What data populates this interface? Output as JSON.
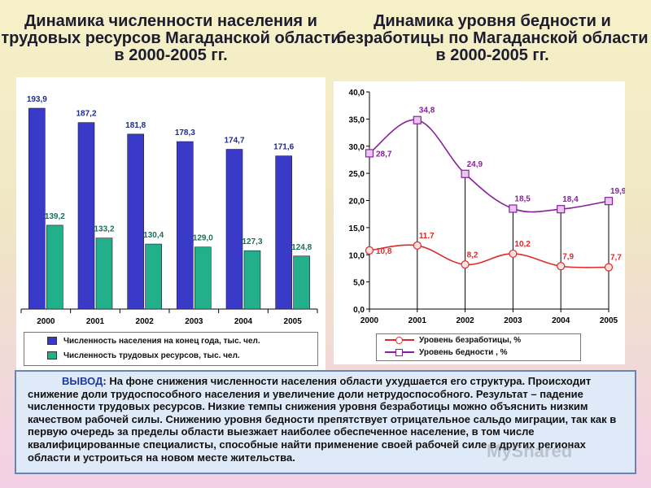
{
  "left_title": "Динамика численности населения и трудовых ресурсов Магаданской области в 2000-2005 гг.",
  "right_title": "Динамика уровня бедности и безработицы по Магаданской области в 2000-2005 гг.",
  "chart_data": [
    {
      "type": "bar",
      "title": "Динамика численности населения и трудовых ресурсов Магаданской области в 2000-2005 гг.",
      "categories": [
        "2000",
        "2001",
        "2002",
        "2003",
        "2004",
        "2005"
      ],
      "series": [
        {
          "name": "Численность населения на конец года, тыс. чел.",
          "values": [
            193.9,
            187.2,
            181.8,
            178.3,
            174.7,
            171.6
          ],
          "labels": [
            "193,9",
            "187,2",
            "181,8",
            "178,3",
            "174,7",
            "171,6"
          ],
          "color": "#3a3ac8",
          "label_color": "#1f2c8f"
        },
        {
          "name": "Численность трудовых ресурсов, тыс. чел.",
          "values": [
            139.2,
            133.2,
            130.4,
            129.0,
            127.3,
            124.8
          ],
          "labels": [
            "139,2",
            "133,2",
            "130,4",
            "129,0",
            "127,3",
            "124,8"
          ],
          "color": "#22b08a",
          "label_color": "#1c6f5a"
        }
      ],
      "ylim": [
        100,
        200
      ],
      "grid": false,
      "legend": "bottom"
    },
    {
      "type": "line",
      "title": "Динамика уровня бедности и безработицы по Магаданской области в 2000-2005 гг.",
      "x": [
        "2000",
        "2001",
        "2002",
        "2003",
        "2004",
        "2005"
      ],
      "yticks": [
        "0,0",
        "5,0",
        "10,0",
        "15,0",
        "20,0",
        "25,0",
        "30,0",
        "35,0",
        "40,0"
      ],
      "ylim": [
        0,
        40
      ],
      "series": [
        {
          "name": "Уровень безработицы, %",
          "values": [
            10.8,
            11.7,
            8.2,
            10.2,
            7.9,
            7.7
          ],
          "labels": [
            "10,8",
            "11.7",
            "8,2",
            "10,2",
            "7,9",
            "7,7"
          ],
          "color": "#e02a2a",
          "marker": "circle"
        },
        {
          "name": "Уровень бедности , %",
          "values": [
            28.7,
            34.8,
            24.9,
            18.5,
            18.4,
            19.9
          ],
          "labels": [
            "28,7",
            "34,8",
            "24,9",
            "18,5",
            "18,4",
            "19,9"
          ],
          "color": "#8a1f9e",
          "marker": "square"
        }
      ],
      "grid": false,
      "legend": "bottom"
    }
  ],
  "conclusion": {
    "lead": "ВЫВОД",
    "text": ": На фоне снижения численности населения области ухудшается его структура. Происходит снижение доли трудоспособного населения и увеличение доли нетрудоспособного. Результат – падение численности трудовых ресурсов. Низкие темпы снижения уровня безработицы можно объяснить низким качеством рабочей силы. Снижению уровня бедности препятствует отрицательное сальдо миграции, так как в первую очередь за пределы области выезжает наиболее обеспеченное население, в том числе квалифицированные специалисты, способные найти применение своей рабочей силе в других регионах области и устроиться на новом месте жительства."
  },
  "watermark": "MyShared"
}
